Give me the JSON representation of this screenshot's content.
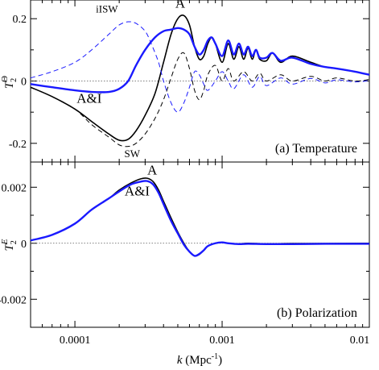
{
  "colors": {
    "black": "#000000",
    "blue": "#1a1aff",
    "axis": "#000000",
    "zero_line": "#555555"
  },
  "chart_data": [
    {
      "type": "line",
      "panel": "temperature",
      "label": "(a) Temperature",
      "ylabel_main": "T",
      "ylabel_sup": "Θ",
      "ylabel_sub": "2",
      "xscale": "log",
      "xlim": [
        5e-05,
        0.01
      ],
      "ylim": [
        -0.26,
        0.26
      ],
      "yticks": [
        0.2,
        0,
        -0.2
      ],
      "ytick_labels": [
        "0.2",
        "0",
        "-0.2"
      ],
      "zero_line": true,
      "annotations": [
        {
          "text": "iISW",
          "x": 0.000165,
          "y": 0.22,
          "color": "blue"
        },
        {
          "text": "A",
          "x": 0.00052,
          "y": 0.235,
          "color": "black"
        },
        {
          "text": "A&I",
          "x": 0.000125,
          "y": -0.07,
          "color": "blue"
        },
        {
          "text": "SW",
          "x": 0.000245,
          "y": -0.245,
          "color": "black"
        }
      ],
      "series": [
        {
          "style": "solid",
          "color": "black",
          "x": [
            5e-05,
            7e-05,
            0.0001,
            0.00013,
            0.00017,
            0.0002,
            0.00023,
            0.00026,
            0.0003,
            0.00035,
            0.0004,
            0.00045,
            0.0005,
            0.00055,
            0.0006,
            0.00065,
            0.0007,
            0.00075,
            0.0008,
            0.00085,
            0.0009,
            0.001,
            0.0011,
            0.0012,
            0.0013,
            0.0014,
            0.0015,
            0.0016,
            0.0017,
            0.0018,
            0.002,
            0.0022,
            0.0025,
            0.003,
            0.004,
            0.005,
            0.006,
            0.008,
            0.01
          ],
          "y": [
            -0.02,
            -0.05,
            -0.09,
            -0.13,
            -0.17,
            -0.19,
            -0.187,
            -0.16,
            -0.11,
            -0.04,
            0.06,
            0.15,
            0.2,
            0.21,
            0.18,
            0.11,
            0.07,
            0.08,
            0.12,
            0.14,
            0.12,
            0.06,
            0.12,
            0.07,
            0.11,
            0.07,
            0.105,
            0.07,
            0.1,
            0.07,
            0.065,
            0.09,
            0.06,
            0.08,
            0.06,
            0.045,
            0.04,
            0.03,
            0.02
          ]
        },
        {
          "style": "dashed",
          "color": "black",
          "x": [
            5e-05,
            7e-05,
            0.0001,
            0.00013,
            0.00017,
            0.0002,
            0.00023,
            0.00026,
            0.0003,
            0.00035,
            0.0004,
            0.00045,
            0.0005,
            0.00055,
            0.0006,
            0.00065,
            0.0007,
            0.00075,
            0.0008,
            0.0009,
            0.001,
            0.0011,
            0.0012,
            0.0014,
            0.0016,
            0.0018,
            0.002,
            0.0025,
            0.003,
            0.004,
            0.005,
            0.006,
            0.008,
            0.01
          ],
          "y": [
            -0.02,
            -0.05,
            -0.09,
            -0.14,
            -0.18,
            -0.205,
            -0.21,
            -0.2,
            -0.17,
            -0.12,
            -0.06,
            0.01,
            0.07,
            0.09,
            0.04,
            -0.03,
            -0.06,
            -0.03,
            0.02,
            0.05,
            0.0,
            0.04,
            0.0,
            0.03,
            0.0,
            0.025,
            0.0,
            0.02,
            0.0,
            0.015,
            0.0,
            0.01,
            0.0,
            0.005
          ]
        },
        {
          "style": "solid",
          "color": "blue",
          "x": [
            5e-05,
            7e-05,
            0.0001,
            0.00013,
            0.00017,
            0.0002,
            0.00023,
            0.00026,
            0.0003,
            0.00035,
            0.0004,
            0.00045,
            0.0005,
            0.00055,
            0.0006,
            0.00065,
            0.0007,
            0.00075,
            0.0008,
            0.00085,
            0.0009,
            0.001,
            0.0011,
            0.0012,
            0.0013,
            0.0014,
            0.0015,
            0.0016,
            0.0017,
            0.0018,
            0.002,
            0.0022,
            0.0025,
            0.003,
            0.004,
            0.005,
            0.006,
            0.008,
            0.01
          ],
          "y": [
            -0.01,
            -0.02,
            -0.03,
            -0.035,
            -0.035,
            -0.025,
            0.0,
            0.05,
            0.1,
            0.14,
            0.16,
            0.165,
            0.17,
            0.165,
            0.15,
            0.11,
            0.085,
            0.1,
            0.13,
            0.14,
            0.12,
            0.08,
            0.13,
            0.085,
            0.12,
            0.085,
            0.11,
            0.08,
            0.1,
            0.075,
            0.075,
            0.09,
            0.065,
            0.075,
            0.055,
            0.045,
            0.04,
            0.03,
            0.02
          ]
        },
        {
          "style": "dashed",
          "color": "blue",
          "x": [
            5e-05,
            7e-05,
            0.0001,
            0.00013,
            0.00017,
            0.0002,
            0.00023,
            0.00026,
            0.0003,
            0.00033,
            0.00037,
            0.0004,
            0.00045,
            0.0005,
            0.00055,
            0.0006,
            0.00065,
            0.0007,
            0.00075,
            0.0008,
            0.0009,
            0.001,
            0.0011,
            0.0012,
            0.0014,
            0.0016,
            0.0018,
            0.002,
            0.0025,
            0.003,
            0.004,
            0.005,
            0.006,
            0.008,
            0.01
          ],
          "y": [
            0.01,
            0.03,
            0.06,
            0.1,
            0.15,
            0.18,
            0.19,
            0.185,
            0.16,
            0.12,
            0.06,
            0.0,
            -0.07,
            -0.1,
            -0.07,
            -0.02,
            0.03,
            0.02,
            -0.01,
            -0.03,
            0.0,
            0.03,
            0.0,
            -0.025,
            0.02,
            -0.02,
            0.015,
            -0.015,
            0.01,
            -0.01,
            0.008,
            -0.006,
            0.004,
            -0.003,
            0.002
          ]
        }
      ]
    },
    {
      "type": "line",
      "panel": "polarization",
      "label": "(b) Polarization",
      "ylabel_main": "T",
      "ylabel_sup": "E",
      "ylabel_sub": "2",
      "xscale": "log",
      "xlim": [
        5e-05,
        0.01
      ],
      "ylim": [
        -0.003,
        0.0029
      ],
      "yticks": [
        0.002,
        0,
        -0.002
      ],
      "ytick_labels": [
        "0.002",
        "0",
        "-0.002"
      ],
      "xticks": [
        0.0001,
        0.001,
        0.01
      ],
      "xtick_labels": [
        "0.0001",
        "0.001",
        "0.01"
      ],
      "xlabel_italic": "k",
      "xlabel_rest": " (Mpc",
      "xlabel_sup": "-1",
      "xlabel_end": ")",
      "zero_line": true,
      "annotations": [
        {
          "text": "A",
          "x": 0.000335,
          "y": 0.00245,
          "color": "black"
        },
        {
          "text": "A&I",
          "x": 0.000265,
          "y": 0.0017,
          "color": "blue"
        }
      ],
      "series": [
        {
          "style": "solid",
          "color": "black",
          "x": [
            5e-05,
            7e-05,
            0.0001,
            0.00013,
            0.00017,
            0.0002,
            0.00024,
            0.00028,
            0.00031,
            0.00034,
            0.00037,
            0.0004,
            0.00045,
            0.0005,
            0.00055,
            0.0006,
            0.00065,
            0.0007,
            0.00075,
            0.0008,
            0.0009,
            0.001,
            0.0011,
            0.0013,
            0.0015,
            0.002,
            0.003,
            0.005,
            0.01
          ],
          "y": [
            0.0001,
            0.0003,
            0.0007,
            0.0012,
            0.0016,
            0.0019,
            0.00215,
            0.0023,
            0.00232,
            0.0022,
            0.0019,
            0.0015,
            0.0009,
            0.0004,
            0.0,
            -0.0003,
            -0.00045,
            -0.0004,
            -0.00025,
            -0.0001,
            0.0,
            3e-05,
            0.0,
            -2e-05,
            0.0,
            -2e-05,
            -1e-05,
            -1e-05,
            0.0
          ]
        },
        {
          "style": "solid",
          "color": "blue",
          "x": [
            5e-05,
            7e-05,
            0.0001,
            0.00013,
            0.00017,
            0.0002,
            0.00024,
            0.00028,
            0.00031,
            0.00034,
            0.00037,
            0.0004,
            0.00045,
            0.0005,
            0.00055,
            0.0006,
            0.00065,
            0.0007,
            0.00075,
            0.0008,
            0.0009,
            0.001,
            0.0011,
            0.0013,
            0.0015,
            0.002,
            0.003,
            0.005,
            0.01
          ],
          "y": [
            0.0001,
            0.0003,
            0.0007,
            0.0012,
            0.0016,
            0.00185,
            0.0021,
            0.0022,
            0.00222,
            0.0021,
            0.0018,
            0.0014,
            0.0008,
            0.00035,
            -5e-05,
            -0.0003,
            -0.00045,
            -0.00038,
            -0.00025,
            -0.0001,
            0.0,
            3e-05,
            0.0,
            -3e-05,
            -2e-05,
            -3e-05,
            -3e-05,
            -2e-05,
            -2e-05
          ]
        }
      ]
    }
  ]
}
